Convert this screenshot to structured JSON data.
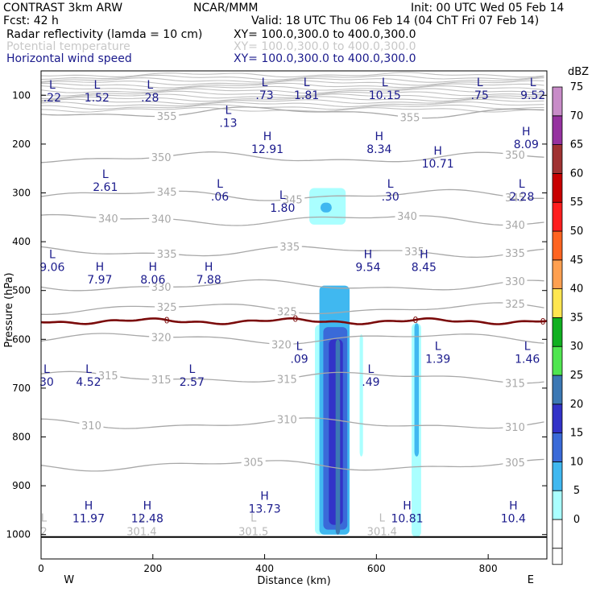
{
  "header": {
    "model": "CONTRAST  3km ARW",
    "org": "NCAR/MMM",
    "init": "Init: 00 UTC Wed 05 Feb 14",
    "fcst": "Fcst:    42 h",
    "valid": "Valid: 18 UTC Thu 06 Feb 14 (04 ChT Fri 07 Feb 14)",
    "fields": [
      {
        "name": "Radar reflectivity (lamda = 10 cm)",
        "xy": "XY= 100.0,300.0 to 400.0,300.0",
        "color": "#000000"
      },
      {
        "name": "Potential temperature",
        "xy": "XY= 100.0,300.0 to 400.0,300.0",
        "color": "#c8c8c8"
      },
      {
        "name": "Horizontal wind speed",
        "xy": "XY= 100.0,300.0 to 400.0,300.0",
        "color": "#1a1a8c"
      }
    ]
  },
  "chart_data": {
    "type": "cross-section",
    "xlabel": "Distance (km)",
    "ylabel": "Pressure (hPa)",
    "xlim": [
      0,
      905
    ],
    "ylim": [
      1050,
      50
    ],
    "xticks": [
      0,
      200,
      400,
      600,
      800
    ],
    "yticks": [
      100,
      200,
      300,
      400,
      500,
      600,
      700,
      800,
      900,
      1000
    ],
    "west_label": "W",
    "east_label": "E",
    "colorbar": {
      "title": "dBZ",
      "levels": [
        0,
        5,
        10,
        15,
        20,
        25,
        30,
        35,
        40,
        45,
        50,
        55,
        60,
        65,
        70,
        75
      ],
      "colors": [
        "#ffffff",
        "#aaffff",
        "#40b8f0",
        "#3a6ad8",
        "#3232c8",
        "#3c78b4",
        "#50e650",
        "#10b020",
        "#ffe650",
        "#ffa050",
        "#ff6420",
        "#ff1e1e",
        "#c80000",
        "#a03232",
        "#9632a0",
        "#c88cc8"
      ]
    },
    "theta_contours": [
      {
        "label": "355",
        "p": 135,
        "labels": [
          {
            "x": 225,
            "text": "355"
          },
          {
            "x": 660,
            "text": "355"
          }
        ]
      },
      {
        "label": "350",
        "p": 228,
        "labels": [
          {
            "x": 215,
            "text": "350"
          },
          {
            "x": 848,
            "text": "350"
          }
        ]
      },
      {
        "label": "345",
        "p": 305,
        "labels": [
          {
            "x": 225,
            "text": "345"
          },
          {
            "x": 450,
            "text": "345"
          },
          {
            "x": 848,
            "text": "345"
          }
        ]
      },
      {
        "label": "340",
        "p": 355,
        "labels": [
          {
            "x": 120,
            "text": "340"
          },
          {
            "x": 215,
            "text": "340"
          },
          {
            "x": 655,
            "text": "340"
          },
          {
            "x": 848,
            "text": "340"
          }
        ]
      },
      {
        "label": "335",
        "p": 420,
        "labels": [
          {
            "x": 225,
            "text": "335"
          },
          {
            "x": 445,
            "text": "335"
          },
          {
            "x": 668,
            "text": "335"
          },
          {
            "x": 848,
            "text": "335"
          }
        ]
      },
      {
        "label": "330",
        "p": 490,
        "labels": [
          {
            "x": 215,
            "text": "330"
          },
          {
            "x": 848,
            "text": "330"
          }
        ]
      },
      {
        "label": "325",
        "p": 537,
        "labels": [
          {
            "x": 225,
            "text": "325"
          },
          {
            "x": 440,
            "text": "325"
          },
          {
            "x": 848,
            "text": "325"
          }
        ]
      },
      {
        "label": "320",
        "p": 598,
        "labels": [
          {
            "x": 215,
            "text": "320"
          },
          {
            "x": 430,
            "text": "320"
          }
        ]
      },
      {
        "label": "315",
        "p": 678,
        "labels": [
          {
            "x": 120,
            "text": "315"
          },
          {
            "x": 215,
            "text": "315"
          },
          {
            "x": 440,
            "text": "315"
          },
          {
            "x": 848,
            "text": "315"
          }
        ]
      },
      {
        "label": "310",
        "p": 773,
        "labels": [
          {
            "x": 90,
            "text": "310"
          },
          {
            "x": 440,
            "text": "310"
          },
          {
            "x": 848,
            "text": "310"
          }
        ]
      },
      {
        "label": "305",
        "p": 858,
        "labels": [
          {
            "x": 380,
            "text": "305"
          },
          {
            "x": 848,
            "text": "305"
          }
        ]
      }
    ],
    "freezing_level": {
      "label": "0",
      "p": 563
    },
    "theta_extrema_surface": [
      {
        "x": 5,
        "p": 1000,
        "type": "L",
        "value": "2"
      },
      {
        "x": 180,
        "p": 1000,
        "type": "L",
        "value": "301.4"
      },
      {
        "x": 380,
        "p": 1000,
        "type": "L",
        "value": "301.5"
      },
      {
        "x": 610,
        "p": 1000,
        "type": "L",
        "value": "301.4"
      }
    ],
    "wind_extrema": [
      {
        "x": 20,
        "p": 80,
        "type": "L",
        "value": ".22"
      },
      {
        "x": 100,
        "p": 80,
        "type": "L",
        "value": "1.52"
      },
      {
        "x": 195,
        "p": 80,
        "type": "L",
        "value": ".28"
      },
      {
        "x": 400,
        "p": 75,
        "type": "L",
        "value": ".73"
      },
      {
        "x": 475,
        "p": 75,
        "type": "L",
        "value": "1.81"
      },
      {
        "x": 615,
        "p": 75,
        "type": "L",
        "value": "10.15"
      },
      {
        "x": 785,
        "p": 75,
        "type": "L",
        "value": ".75"
      },
      {
        "x": 880,
        "p": 75,
        "type": "L",
        "value": "9.52"
      },
      {
        "x": 335,
        "p": 132,
        "type": "L",
        "value": ".13"
      },
      {
        "x": 405,
        "p": 185,
        "type": "H",
        "value": "12.91"
      },
      {
        "x": 605,
        "p": 185,
        "type": "H",
        "value": "8.34"
      },
      {
        "x": 868,
        "p": 175,
        "type": "H",
        "value": "8.09"
      },
      {
        "x": 710,
        "p": 215,
        "type": "H",
        "value": "10.71"
      },
      {
        "x": 115,
        "p": 263,
        "type": "L",
        "value": "2.61"
      },
      {
        "x": 320,
        "p": 283,
        "type": "L",
        "value": ".06"
      },
      {
        "x": 432,
        "p": 306,
        "type": "L",
        "value": "1.80"
      },
      {
        "x": 625,
        "p": 283,
        "type": "L",
        "value": ".30"
      },
      {
        "x": 860,
        "p": 283,
        "type": "L",
        "value": "2.28"
      },
      {
        "x": 20,
        "p": 427,
        "type": "L",
        "value": "9.06"
      },
      {
        "x": 585,
        "p": 427,
        "type": "H",
        "value": "9.54"
      },
      {
        "x": 685,
        "p": 427,
        "type": "H",
        "value": "8.45"
      },
      {
        "x": 105,
        "p": 453,
        "type": "H",
        "value": "7.97"
      },
      {
        "x": 200,
        "p": 453,
        "type": "H",
        "value": "8.06"
      },
      {
        "x": 300,
        "p": 453,
        "type": "H",
        "value": "7.88"
      },
      {
        "x": 462,
        "p": 615,
        "type": "L",
        "value": ".09"
      },
      {
        "x": 710,
        "p": 615,
        "type": "L",
        "value": "1.39"
      },
      {
        "x": 870,
        "p": 615,
        "type": "L",
        "value": "1.46"
      },
      {
        "x": 10,
        "p": 662,
        "type": "L",
        "value": "30"
      },
      {
        "x": 85,
        "p": 662,
        "type": "L",
        "value": "4.52"
      },
      {
        "x": 270,
        "p": 662,
        "type": "L",
        "value": "2.57"
      },
      {
        "x": 590,
        "p": 662,
        "type": "L",
        "value": ".49"
      },
      {
        "x": 400,
        "p": 922,
        "type": "H",
        "value": "13.73"
      },
      {
        "x": 85,
        "p": 942,
        "type": "H",
        "value": "11.97"
      },
      {
        "x": 190,
        "p": 942,
        "type": "H",
        "value": "12.48"
      },
      {
        "x": 655,
        "p": 942,
        "type": "H",
        "value": "10.81"
      },
      {
        "x": 845,
        "p": 942,
        "type": "H",
        "value": "10.4"
      }
    ],
    "reflectivity_cells": [
      {
        "x0": 480,
        "x1": 545,
        "p0": 290,
        "p1": 365,
        "dbz": 5
      },
      {
        "x0": 500,
        "x1": 520,
        "p0": 320,
        "p1": 340,
        "dbz": 10
      },
      {
        "x0": 490,
        "x1": 552,
        "p0": 570,
        "p1": 1000,
        "dbz": 5
      },
      {
        "x0": 498,
        "x1": 552,
        "p0": 490,
        "p1": 1000,
        "dbz": 10
      },
      {
        "x0": 505,
        "x1": 548,
        "p0": 575,
        "p1": 990,
        "dbz": 15
      },
      {
        "x0": 515,
        "x1": 540,
        "p0": 600,
        "p1": 980,
        "dbz": 20
      },
      {
        "x0": 527,
        "x1": 535,
        "p0": 600,
        "p1": 1000,
        "dbz": 25
      },
      {
        "x0": 570,
        "x1": 576,
        "p0": 590,
        "p1": 840,
        "dbz": 5
      },
      {
        "x0": 663,
        "x1": 680,
        "p0": 567,
        "p1": 1005,
        "dbz": 5
      },
      {
        "x0": 668,
        "x1": 676,
        "p0": 567,
        "p1": 840,
        "dbz": 10
      }
    ]
  }
}
